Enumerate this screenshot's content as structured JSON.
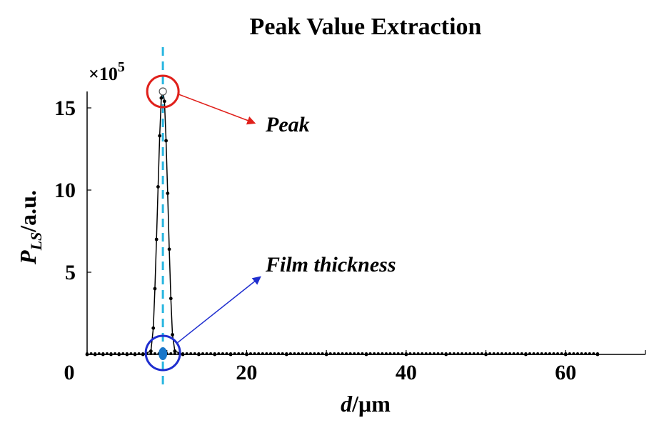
{
  "chart_data": {
    "type": "line",
    "title": "Peak Value Extraction",
    "xlabel": "d/μm",
    "ylabel": "P_LS/a.u.",
    "xlim": [
      0,
      70
    ],
    "ylim": [
      0,
      16
    ],
    "x_ticks": [
      0,
      10,
      20,
      30,
      40,
      50,
      60,
      70
    ],
    "x_tick_labels": [
      {
        "value": 0,
        "label": "0"
      },
      {
        "value": 20,
        "label": "20"
      },
      {
        "value": 40,
        "label": "40"
      },
      {
        "value": 60,
        "label": "60"
      }
    ],
    "y_tick_labels": [
      {
        "value": 5,
        "label": "5"
      },
      {
        "value": 10,
        "label": "10"
      },
      {
        "value": 15,
        "label": "15"
      }
    ],
    "y_multiplier": "×10",
    "y_multiplier_exp": "5",
    "series": [
      {
        "name": "P_LS",
        "x": [
          0,
          1,
          2,
          3,
          4,
          5,
          6,
          7,
          8.0,
          8.3,
          8.5,
          8.7,
          8.9,
          9.1,
          9.3,
          9.5,
          9.7,
          9.9,
          10.1,
          10.3,
          10.5,
          10.7,
          11,
          12,
          14,
          16,
          18,
          20,
          25,
          30,
          35,
          40,
          45,
          50,
          55,
          60,
          64
        ],
        "y": [
          0,
          0,
          0,
          0,
          0,
          0,
          0,
          0,
          0.2,
          1.6,
          4.0,
          7.0,
          10.2,
          13.3,
          15.6,
          16.0,
          15.4,
          13.0,
          9.8,
          6.4,
          3.4,
          1.2,
          0.2,
          0,
          0,
          0,
          0,
          0,
          0,
          0,
          0,
          0,
          0,
          0,
          0,
          0,
          0
        ]
      }
    ],
    "peak_line_x": 9.5,
    "peak_point": {
      "x": 9.5,
      "y": 16.0
    },
    "thickness_point": {
      "x": 9.5,
      "y": 0
    },
    "annotations": [
      {
        "text": "Peak",
        "target": "peak"
      },
      {
        "text": "Film thickness",
        "target": "film-thickness"
      }
    ],
    "colors": {
      "axis": "#000000",
      "series": "#000000",
      "dash_line": "#29b6e0",
      "peak_circle": "#e0201b",
      "thickness_circle": "#1f2ecf",
      "thickness_dot": "#1976c9"
    }
  }
}
